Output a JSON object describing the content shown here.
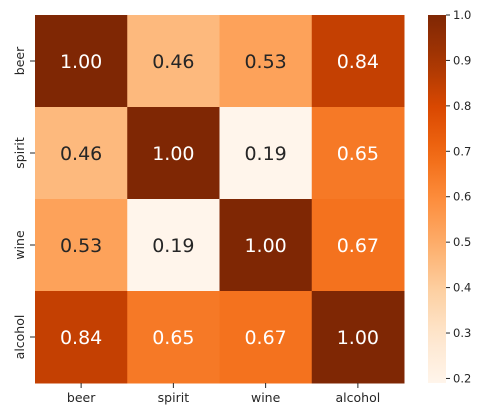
{
  "chart_data": {
    "type": "heatmap",
    "title": "",
    "xlabel": "",
    "ylabel": "",
    "x_labels": [
      "beer",
      "spirit",
      "wine",
      "alcohol"
    ],
    "y_labels": [
      "beer",
      "spirit",
      "wine",
      "alcohol"
    ],
    "values": [
      [
        1.0,
        0.46,
        0.53,
        0.84
      ],
      [
        0.46,
        1.0,
        0.19,
        0.65
      ],
      [
        0.53,
        0.19,
        1.0,
        0.67
      ],
      [
        0.84,
        0.65,
        0.67,
        1.0
      ]
    ],
    "value_format": "0.00",
    "colormap": "Oranges",
    "colorbar": {
      "range": [
        0.19,
        1.0
      ],
      "ticks": [
        "0.2",
        "0.3",
        "0.4",
        "0.5",
        "0.6",
        "0.7",
        "0.8",
        "0.9",
        "1.0"
      ]
    },
    "colors": {
      "low": "#fff5eb",
      "high": "#7f2704",
      "text_dark": "#262626",
      "text_light": "#ffffff"
    }
  }
}
